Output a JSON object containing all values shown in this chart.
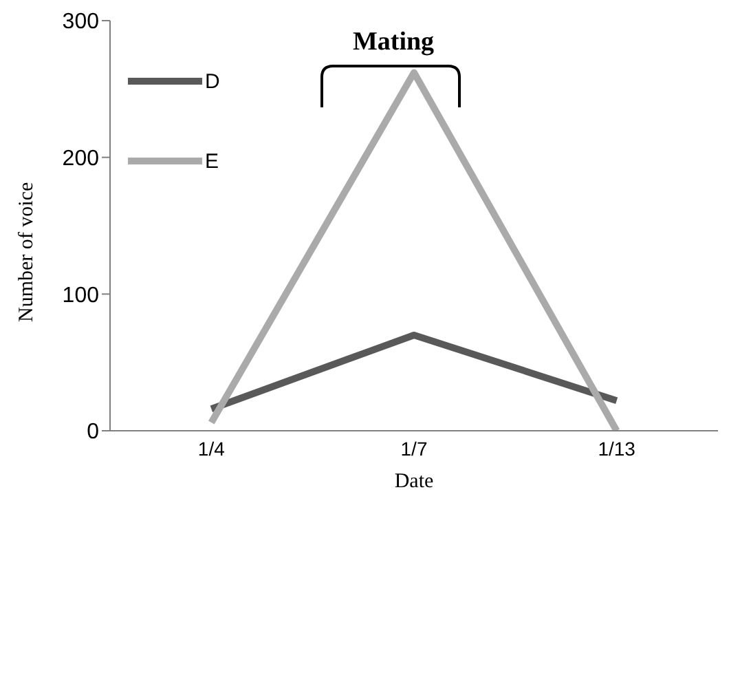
{
  "chart_data": {
    "type": "line",
    "xlabel": "Date",
    "ylabel": "Number of voice",
    "categories": [
      "1/4",
      "1/7",
      "1/13"
    ],
    "series": [
      {
        "name": "D",
        "color": "#595959",
        "values": [
          16,
          70,
          22
        ]
      },
      {
        "name": "E",
        "color": "#aaaaaa",
        "values": [
          6,
          262,
          0
        ]
      }
    ],
    "ylim": [
      0,
      300
    ],
    "yticks": [
      0,
      100,
      200,
      300
    ],
    "legend": "top left",
    "marker": "none",
    "grid": false,
    "annotations": [
      "Mating"
    ]
  }
}
